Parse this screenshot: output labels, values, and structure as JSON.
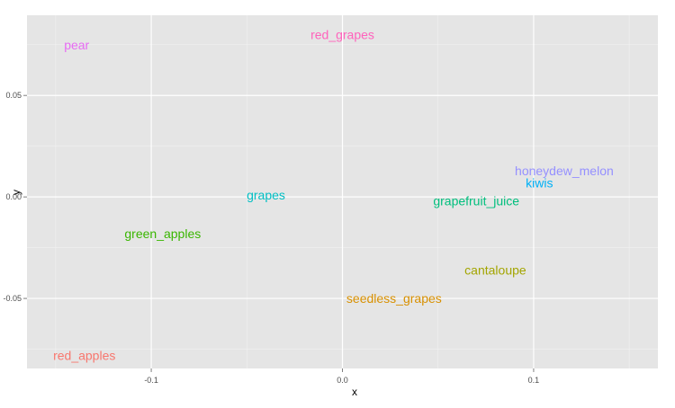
{
  "chart_data": {
    "type": "scatter",
    "title": "",
    "xlabel": "x",
    "ylabel": "y",
    "xlim": [
      -0.165,
      0.165
    ],
    "ylim": [
      -0.0845,
      0.0895
    ],
    "x_ticks": [
      -0.1,
      0.0,
      0.1
    ],
    "x_tick_labels": [
      "-0.1",
      "0.0",
      "0.1"
    ],
    "y_ticks": [
      -0.05,
      0.0,
      0.05
    ],
    "y_tick_labels": [
      "-0.05",
      "0.00",
      "0.05"
    ],
    "grid": true,
    "legend": "none",
    "points": [
      {
        "label": "pear",
        "x": -0.139,
        "y": 0.075,
        "color": "#E76BF3"
      },
      {
        "label": "red_grapes",
        "x": 0.0,
        "y": 0.08,
        "color": "#FF62BC"
      },
      {
        "label": "honeydew_melon",
        "x": 0.116,
        "y": 0.013,
        "color": "#9590FF"
      },
      {
        "label": "kiwis",
        "x": 0.103,
        "y": 0.007,
        "color": "#00B0F6"
      },
      {
        "label": "grapes",
        "x": -0.04,
        "y": 0.001,
        "color": "#00BFC4"
      },
      {
        "label": "grapefruit_juice",
        "x": 0.07,
        "y": -0.002,
        "color": "#00BF7D"
      },
      {
        "label": "green_apples",
        "x": -0.094,
        "y": -0.018,
        "color": "#39B600"
      },
      {
        "label": "cantaloupe",
        "x": 0.08,
        "y": -0.036,
        "color": "#A3A500"
      },
      {
        "label": "seedless_grapes",
        "x": 0.027,
        "y": -0.05,
        "color": "#D89000"
      },
      {
        "label": "red_apples",
        "x": -0.135,
        "y": -0.078,
        "color": "#F8766D"
      }
    ]
  }
}
